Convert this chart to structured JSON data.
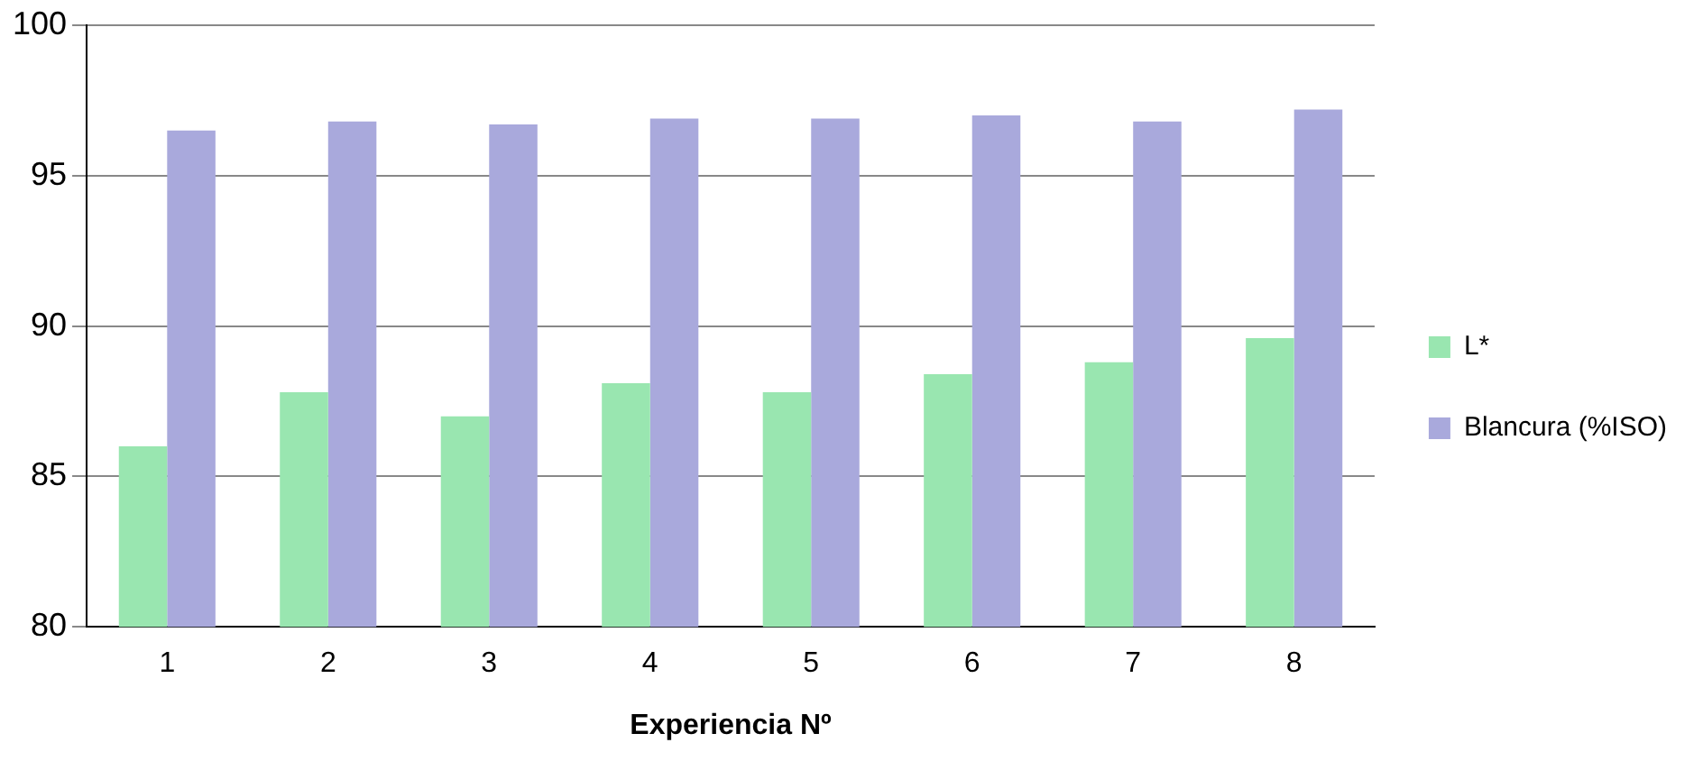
{
  "chart_data": {
    "type": "bar",
    "xlabel": "Experiencia Nº",
    "categories": [
      "1",
      "2",
      "3",
      "4",
      "5",
      "6",
      "7",
      "8"
    ],
    "series": [
      {
        "name": "L*",
        "color": "#99e6b0",
        "values": [
          86.0,
          87.8,
          87.0,
          88.1,
          87.8,
          88.4,
          88.8,
          89.6
        ]
      },
      {
        "name": "Blancura (%ISO)",
        "color": "#a9a9dc",
        "values": [
          96.5,
          96.8,
          96.7,
          96.9,
          96.9,
          97.0,
          96.8,
          97.2
        ]
      }
    ],
    "ylim": [
      80,
      100
    ],
    "yticks": [
      80,
      85,
      90,
      95,
      100
    ],
    "grid": "y",
    "legend": "right"
  }
}
